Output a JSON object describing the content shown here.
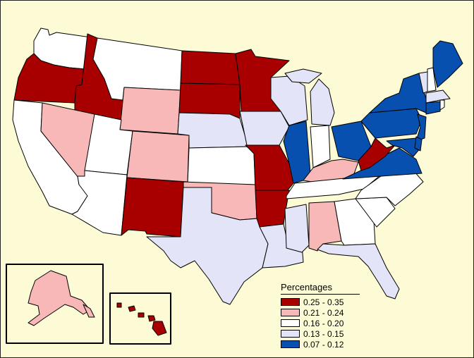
{
  "map": {
    "background_color": "#fdfbd6",
    "border_color": "#000000"
  },
  "legend": {
    "title": "Percentages",
    "classes": [
      {
        "label": "0.25 - 0.35",
        "color": "#a80000"
      },
      {
        "label": "0.21 - 0.24",
        "color": "#f8b8b8"
      },
      {
        "label": "0.16 - 0.20",
        "color": "#ffffff"
      },
      {
        "label": "0.13 - 0.15",
        "color": "#e4e4f8"
      },
      {
        "label": "0.07 - 0.12",
        "color": "#0850b0"
      }
    ]
  },
  "states": {
    "WA": "0.16 - 0.20",
    "OR": "0.25 - 0.35",
    "ID": "0.25 - 0.35",
    "MT": "0.16 - 0.20",
    "WY": "0.21 - 0.24",
    "CA": "0.16 - 0.20",
    "NV": "0.21 - 0.24",
    "UT": "0.16 - 0.20",
    "AZ": "0.16 - 0.20",
    "CO": "0.21 - 0.24",
    "NM": "0.25 - 0.35",
    "ND": "0.25 - 0.35",
    "SD": "0.25 - 0.35",
    "NE": "0.13 - 0.15",
    "KS": "0.16 - 0.20",
    "OK": "0.21 - 0.24",
    "TX": "0.13 - 0.15",
    "MN": "0.25 - 0.35",
    "IA": "0.13 - 0.15",
    "MO": "0.25 - 0.35",
    "AR": "0.25 - 0.35",
    "LA": "0.13 - 0.15",
    "WI": "0.13 - 0.15",
    "IL": "0.07 - 0.12",
    "MI": "0.13 - 0.15",
    "IN": "0.16 - 0.20",
    "OH": "0.07 - 0.12",
    "KY": "0.21 - 0.24",
    "TN": "0.16 - 0.20",
    "MS": "0.13 - 0.15",
    "AL": "0.21 - 0.24",
    "GA": "0.16 - 0.20",
    "FL": "0.13 - 0.15",
    "SC": "0.16 - 0.20",
    "NC": "0.16 - 0.20",
    "VA": "0.07 - 0.12",
    "WV": "0.25 - 0.35",
    "PA": "0.07 - 0.12",
    "NY": "0.07 - 0.12",
    "VT": "0.13 - 0.15",
    "NH": "0.16 - 0.20",
    "ME": "0.07 - 0.12",
    "MA": "0.13 - 0.15",
    "CT": "0.07 - 0.12",
    "RI": "0.16 - 0.20",
    "NJ": "0.07 - 0.12",
    "DE": "0.07 - 0.12",
    "MD": "0.07 - 0.12",
    "AK": "0.21 - 0.24",
    "HI": "0.25 - 0.35"
  }
}
